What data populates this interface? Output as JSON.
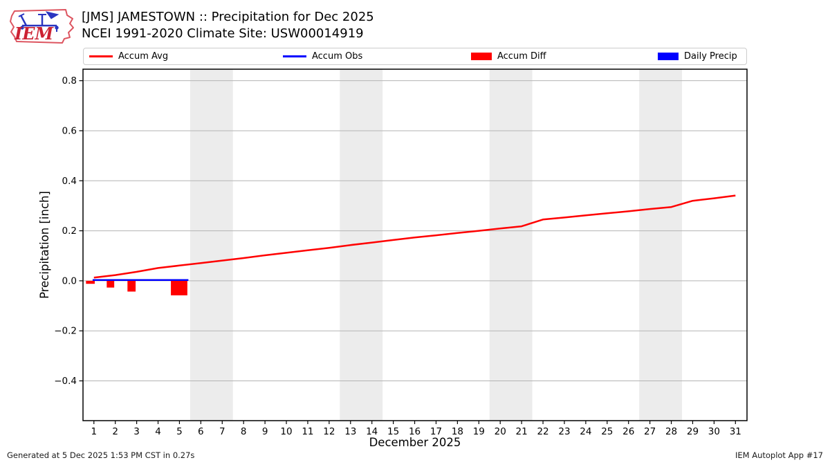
{
  "header": {
    "logo_text": "IEM",
    "title_line1": "[JMS] JAMESTOWN :: Precipitation for Dec 2025",
    "title_line2": "NCEI 1991-2020 Climate Site: USW00014919"
  },
  "legend": {
    "items": [
      {
        "label": "Accum Avg",
        "type": "line",
        "color": "#ff0000"
      },
      {
        "label": "Accum Obs",
        "type": "line",
        "color": "#0000ff"
      },
      {
        "label": "Accum Diff",
        "type": "patch",
        "color": "#ff0000"
      },
      {
        "label": "Daily Precip",
        "type": "patch",
        "color": "#0000ff"
      }
    ]
  },
  "footer": {
    "generated": "Generated at 5 Dec 2025 1:53 PM CST in 0.27s",
    "app": "IEM Autoplot App #17"
  },
  "chart_data": {
    "type": "line",
    "xlabel": "December 2025",
    "ylabel": "Precipitation [inch]",
    "xlim": [
      0.49,
      31.54
    ],
    "ylim": [
      -0.559,
      0.846
    ],
    "x_ticks": [
      1,
      2,
      3,
      4,
      5,
      6,
      7,
      8,
      9,
      10,
      11,
      12,
      13,
      14,
      15,
      16,
      17,
      18,
      19,
      20,
      21,
      22,
      23,
      24,
      25,
      26,
      27,
      28,
      29,
      30,
      31
    ],
    "y_ticks": [
      -0.4,
      -0.2,
      0.0,
      0.2,
      0.4,
      0.6,
      0.8
    ],
    "y_tick_labels": [
      "−0.4",
      "−0.2",
      "0.0",
      "0.2",
      "0.4",
      "0.6",
      "0.8"
    ],
    "grid": true,
    "legend_position": "top",
    "weekend_bands": [
      [
        5.5,
        7.5
      ],
      [
        12.5,
        14.5
      ],
      [
        19.5,
        21.5
      ],
      [
        26.5,
        28.5
      ]
    ],
    "colors": {
      "band": "#ececec",
      "grid": "#b3b3b3",
      "frame": "#000000",
      "avg": "#ff0000",
      "obs": "#0000ff",
      "diff": "#ff0000",
      "daily": "#0000ff"
    },
    "series": [
      {
        "name": "Accum Diff",
        "type": "bar",
        "color": "#ff0000",
        "bars": [
          {
            "x0": 0.63,
            "x1": 1.04,
            "v": -0.012
          },
          {
            "x0": 1.6,
            "x1": 1.95,
            "v": -0.027
          },
          {
            "x0": 2.57,
            "x1": 2.95,
            "v": -0.043
          },
          {
            "x0": 4.6,
            "x1": 5.37,
            "v": -0.058
          }
        ]
      },
      {
        "name": "Daily Precip",
        "type": "bar",
        "color": "#0000ff",
        "bars": []
      },
      {
        "name": "Accum Obs",
        "type": "line",
        "color": "#0000ff",
        "width": 2.5,
        "x": [
          0.94,
          5.42
        ],
        "y": [
          0.003,
          0.003
        ]
      },
      {
        "name": "Accum Avg",
        "type": "line",
        "color": "#ff0000",
        "width": 2.5,
        "x": [
          1,
          2,
          3,
          4,
          5,
          6,
          7,
          8,
          9,
          10,
          11,
          12,
          13,
          14,
          15,
          16,
          17,
          18,
          19,
          20,
          21,
          22,
          23,
          24,
          25,
          26,
          27,
          28,
          29,
          30,
          31
        ],
        "y": [
          0.013,
          0.023,
          0.036,
          0.051,
          0.061,
          0.071,
          0.081,
          0.091,
          0.102,
          0.112,
          0.122,
          0.132,
          0.143,
          0.153,
          0.163,
          0.173,
          0.182,
          0.191,
          0.2,
          0.209,
          0.218,
          0.245,
          0.253,
          0.262,
          0.27,
          0.278,
          0.287,
          0.295,
          0.32,
          0.33,
          0.341
        ]
      }
    ]
  }
}
